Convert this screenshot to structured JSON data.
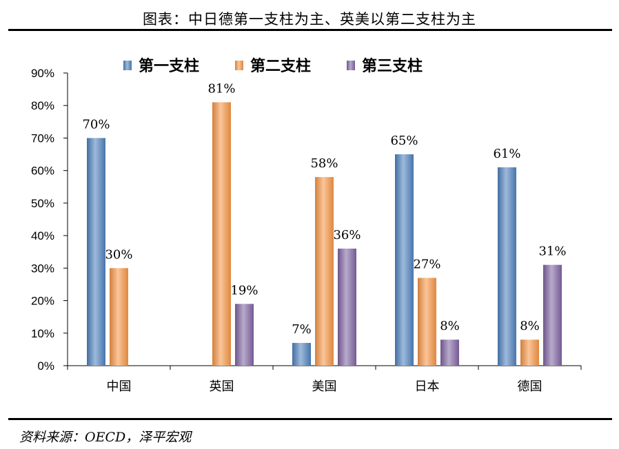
{
  "header": {
    "title": "图表：中日德第一支柱为主、英美以第二支柱为主"
  },
  "footer": {
    "source": "资料来源：OECD，泽平宏观"
  },
  "colors": {
    "series1": "#4f81bd",
    "series2": "#f79646",
    "series3": "#8064a2"
  },
  "chart_data": {
    "type": "bar",
    "title": "图表：中日德第一支柱为主、英美以第二支柱为主",
    "categories": [
      "中国",
      "英国",
      "美国",
      "日本",
      "德国"
    ],
    "series": [
      {
        "name": "第一支柱",
        "values": [
          0.7,
          null,
          0.07,
          0.65,
          0.61
        ],
        "labels": [
          "70%",
          "",
          "7%",
          "65%",
          "61%"
        ]
      },
      {
        "name": "第二支柱",
        "values": [
          0.3,
          0.81,
          0.58,
          0.27,
          0.08
        ],
        "labels": [
          "30%",
          "81%",
          "58%",
          "27%",
          "8%"
        ]
      },
      {
        "name": "第三支柱",
        "values": [
          null,
          0.19,
          0.36,
          0.08,
          0.31
        ],
        "labels": [
          "",
          "19%",
          "36%",
          "8%",
          "31%"
        ]
      }
    ],
    "ylim": [
      0,
      0.9
    ],
    "yticks": [
      0,
      0.1,
      0.2,
      0.3,
      0.4,
      0.5,
      0.6,
      0.7,
      0.8,
      0.9
    ],
    "ytick_labels": [
      "0%",
      "10%",
      "20%",
      "30%",
      "40%",
      "50%",
      "60%",
      "70%",
      "80%",
      "90%"
    ],
    "xlabel": "",
    "ylabel": "",
    "legend_position": "top-center",
    "grid": false
  }
}
